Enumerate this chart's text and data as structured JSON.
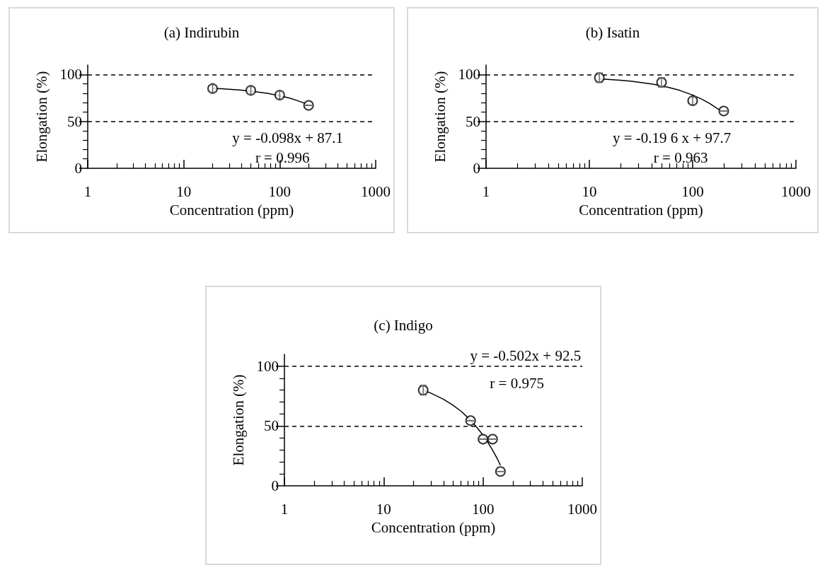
{
  "chart_data": [
    {
      "type": "scatter",
      "title": "(a) Indirubin",
      "xlabel": "Concentration (ppm)",
      "ylabel": "Elongation (%)",
      "log": "x",
      "xlim": [
        1,
        1000
      ],
      "xticks": [
        1,
        10,
        100,
        1000
      ],
      "ylim": [
        0,
        110
      ],
      "yticks": [
        0,
        50,
        100
      ],
      "grid": false,
      "ref_lines": [
        {
          "axis": "y",
          "value": 100,
          "line_style": "dashed",
          "color": "#000000"
        },
        {
          "axis": "y",
          "value": 50,
          "line_style": "dashed",
          "color": "#000000"
        }
      ],
      "annotations": [
        "y = -0.098x + 87.1",
        "r = 0.996"
      ],
      "series": [
        {
          "color": "#000000",
          "marker": "circle",
          "x": [
            20,
            50,
            100,
            200
          ],
          "values": [
            85,
            83,
            78,
            67
          ],
          "errors": [
            4,
            4,
            4,
            null
          ]
        },
        {
          "type": "line",
          "color": "#000000",
          "marker": "none",
          "line_style": "solid",
          "x": [
            20,
            25,
            30,
            40,
            50,
            60,
            75,
            100,
            125,
            150,
            175,
            200
          ],
          "values": [
            85.1,
            84.7,
            84.2,
            83.2,
            82.2,
            81.2,
            79.8,
            77.3,
            74.9,
            72.4,
            70,
            67.5
          ]
        }
      ]
    },
    {
      "type": "scatter",
      "title": "(b) Isatin",
      "xlabel": "Concentration (ppm)",
      "ylabel": "Elongation (%)",
      "log": "x",
      "xlim": [
        1,
        1000
      ],
      "xticks": [
        1,
        10,
        100,
        1000
      ],
      "ylim": [
        0,
        110
      ],
      "yticks": [
        0,
        50,
        100
      ],
      "grid": false,
      "ref_lines": [
        {
          "axis": "y",
          "value": 100,
          "line_style": "dashed",
          "color": "#000000"
        },
        {
          "axis": "y",
          "value": 50,
          "line_style": "dashed",
          "color": "#000000"
        }
      ],
      "annotations": [
        "y = -0.19 6 x + 97.7",
        "r = 0.963"
      ],
      "series": [
        {
          "color": "#000000",
          "marker": "circle",
          "x": [
            12.5,
            50,
            100,
            200
          ],
          "values": [
            96.5,
            91.5,
            72,
            61
          ],
          "errors": [
            5,
            5,
            4,
            null
          ]
        },
        {
          "type": "line",
          "color": "#000000",
          "marker": "none",
          "line_style": "solid",
          "x": [
            12.5,
            15,
            20,
            25,
            30,
            40,
            50,
            60,
            75,
            100,
            125,
            150,
            175,
            200
          ],
          "values": [
            95.2,
            94.8,
            93.8,
            92.8,
            91.8,
            89.9,
            87.9,
            85.9,
            83,
            78.1,
            73.2,
            68.3,
            63.4,
            60
          ]
        }
      ]
    },
    {
      "type": "scatter",
      "title": "(c) Indigo",
      "xlabel": "Concentration (ppm)",
      "ylabel": "Elongation (%)",
      "log": "x",
      "xlim": [
        1,
        1000
      ],
      "xticks": [
        1,
        10,
        100,
        1000
      ],
      "ylim": [
        0,
        110
      ],
      "yticks": [
        0,
        50,
        100
      ],
      "grid": false,
      "ref_lines": [
        {
          "axis": "y",
          "value": 100,
          "line_style": "dashed",
          "color": "#000000"
        },
        {
          "axis": "y",
          "value": 50,
          "line_style": "dashed",
          "color": "#000000"
        }
      ],
      "annotations": [
        "y = -0.502x + 92.5",
        "r = 0.975"
      ],
      "series": [
        {
          "color": "#000000",
          "marker": "circle",
          "x": [
            25,
            75,
            100,
            125,
            150
          ],
          "values": [
            80,
            54.5,
            39,
            39,
            12
          ],
          "errors": [
            4,
            null,
            null,
            null,
            null
          ]
        },
        {
          "type": "line",
          "color": "#000000",
          "marker": "none",
          "line_style": "solid",
          "x": [
            25,
            30,
            40,
            50,
            60,
            75,
            90,
            100,
            110,
            125,
            140,
            150
          ],
          "values": [
            80,
            77.4,
            72.4,
            67.4,
            62.4,
            54.9,
            47.3,
            42.3,
            37.3,
            29.8,
            22.2,
            17.2
          ]
        }
      ]
    }
  ]
}
